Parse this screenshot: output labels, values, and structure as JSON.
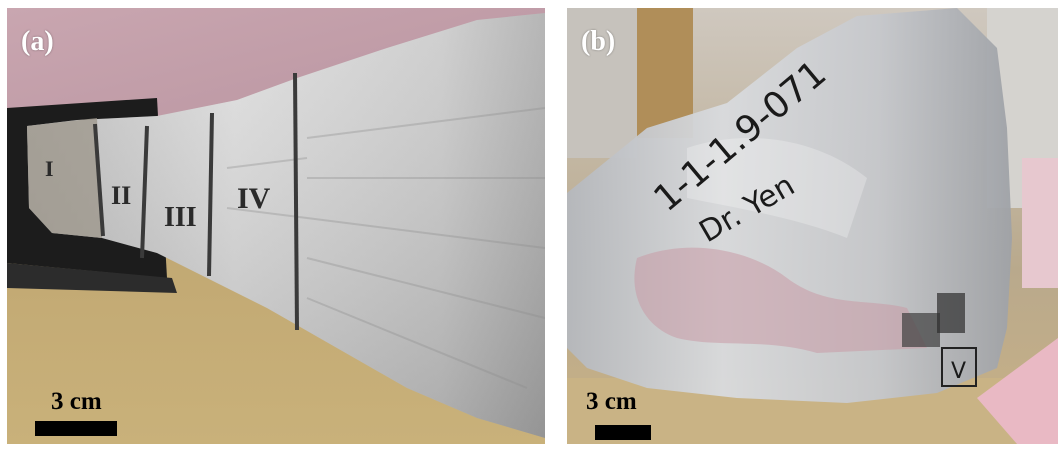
{
  "panels": [
    {
      "label": "(a)",
      "scale_bar": "3 cm",
      "section_marks": [
        "I",
        "II",
        "III",
        "IV"
      ]
    },
    {
      "label": "(b)",
      "scale_bar": "3 cm",
      "handwritten_id": "1-1-1.9-071",
      "handwritten_name": "Dr. Yen",
      "section_mark": "V"
    }
  ]
}
